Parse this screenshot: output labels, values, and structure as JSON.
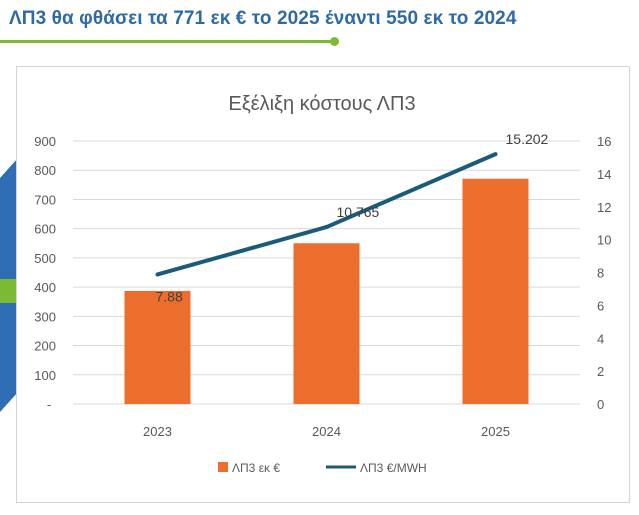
{
  "header": {
    "title": "ΛΠ3  θα φθάσει τα 771 εκ € το 2025 έναντι 550 εκ το 2024"
  },
  "chart_data": {
    "type": "bar+line",
    "title": "Εξέλιξη κόστους ΛΠ3",
    "categories": [
      "2023",
      "2024",
      "2025"
    ],
    "series": [
      {
        "name": "ΛΠ3 εκ €",
        "type": "bar",
        "axis": "left",
        "values": [
          387,
          550,
          771
        ],
        "color": "#ed6d2c"
      },
      {
        "name": "ΛΠ3 €/MWH",
        "type": "line",
        "axis": "right",
        "values": [
          7.88,
          10.765,
          15.202
        ],
        "labels": [
          "7.88",
          "10.765",
          "15.202"
        ],
        "color": "#1b5b7a"
      }
    ],
    "y_left": {
      "range": [
        0,
        900
      ],
      "ticks": [
        "-",
        "100",
        "200",
        "300",
        "400",
        "500",
        "600",
        "700",
        "800",
        "900"
      ]
    },
    "y_right": {
      "range": [
        0,
        16
      ],
      "ticks": [
        "0",
        "2",
        "4",
        "6",
        "8",
        "10",
        "12",
        "14",
        "16"
      ]
    },
    "grid": true,
    "legend": "bottom"
  },
  "colors": {
    "title": "#2e6aa8",
    "accent_green": "#7dba34",
    "deco_blue": "#2f6db5"
  }
}
